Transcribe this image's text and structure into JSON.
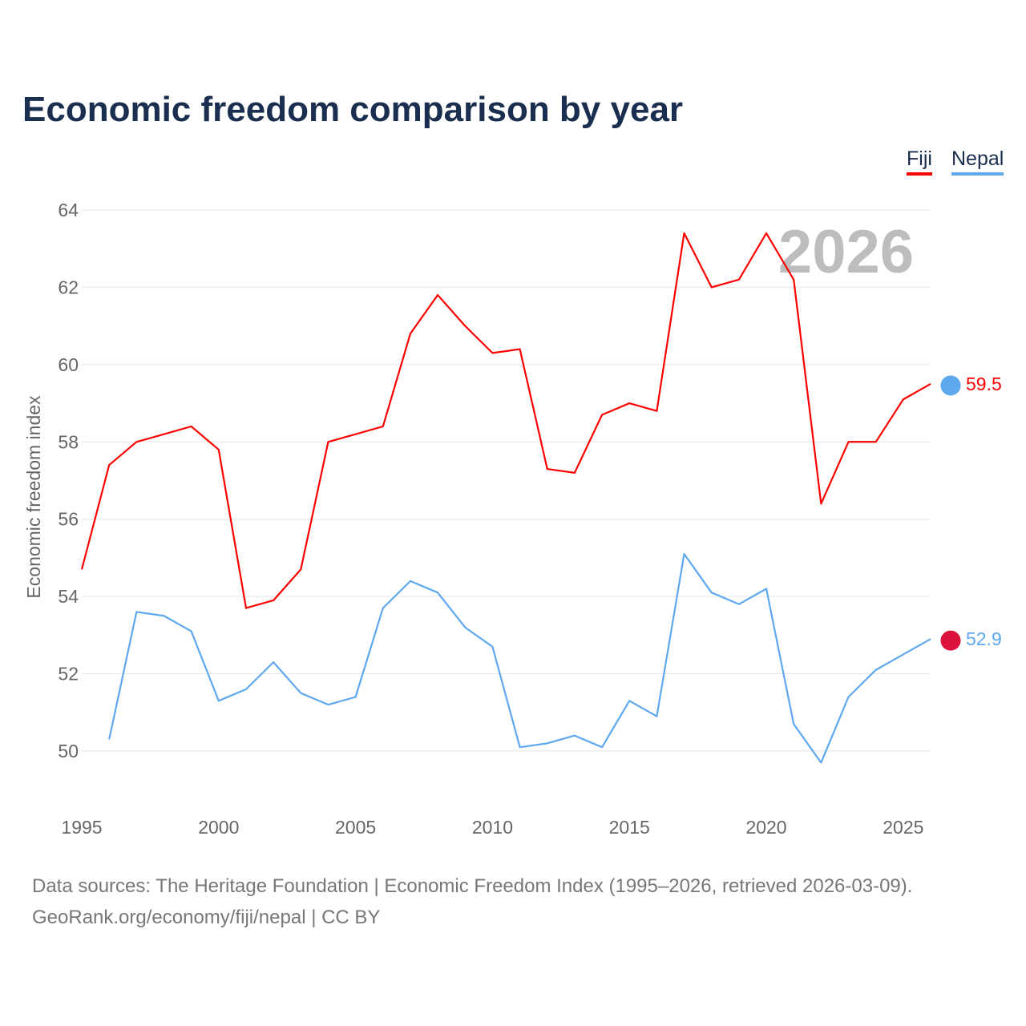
{
  "title": "Economic freedom comparison by year",
  "footer": {
    "line1": "Data sources: The Heritage Foundation | Economic Freedom Index (1995–2026, retrieved 2026-03-09).",
    "line2": "GeoRank.org/economy/fiji/nepal | CC BY"
  },
  "chart_data": {
    "type": "line",
    "title": "Economic freedom comparison by year",
    "xlabel": "",
    "ylabel": "Economic freedom index",
    "watermark_year": "2026",
    "xlim": [
      1995,
      2026
    ],
    "ylim": [
      48.5,
      64
    ],
    "xticks": [
      1995,
      2000,
      2005,
      2010,
      2015,
      2020,
      2025
    ],
    "yticks": [
      50,
      52,
      54,
      56,
      58,
      60,
      62,
      64
    ],
    "grid": true,
    "legend_position": "top-right",
    "series": [
      {
        "name": "Fiji",
        "color": "#ff0000",
        "end_label": "59.5",
        "x": [
          1995,
          1996,
          1997,
          1998,
          1999,
          2000,
          2001,
          2002,
          2003,
          2004,
          2005,
          2006,
          2007,
          2008,
          2009,
          2010,
          2011,
          2012,
          2013,
          2014,
          2015,
          2016,
          2017,
          2018,
          2019,
          2020,
          2021,
          2022,
          2023,
          2024,
          2025,
          2026
        ],
        "values": [
          54.7,
          57.4,
          58.0,
          58.2,
          58.4,
          57.8,
          53.7,
          53.9,
          54.7,
          58.0,
          58.2,
          58.4,
          60.8,
          61.8,
          61.0,
          60.3,
          60.4,
          57.3,
          57.2,
          58.7,
          59.0,
          58.8,
          63.4,
          62.0,
          62.2,
          63.4,
          62.2,
          56.4,
          58.0,
          58.0,
          59.1,
          59.5
        ]
      },
      {
        "name": "Nepal",
        "color": "#5ea8ef",
        "end_label": "52.9",
        "x": [
          1996,
          1997,
          1998,
          1999,
          2000,
          2001,
          2002,
          2003,
          2004,
          2005,
          2006,
          2007,
          2008,
          2009,
          2010,
          2011,
          2012,
          2013,
          2014,
          2015,
          2016,
          2017,
          2018,
          2019,
          2020,
          2021,
          2022,
          2023,
          2024,
          2025,
          2026
        ],
        "values": [
          50.3,
          53.6,
          53.5,
          53.1,
          51.3,
          51.6,
          52.3,
          51.5,
          51.2,
          51.4,
          53.7,
          54.4,
          54.1,
          53.2,
          52.7,
          50.1,
          50.2,
          50.4,
          50.1,
          51.3,
          50.9,
          55.1,
          54.1,
          53.8,
          54.2,
          50.7,
          49.7,
          51.4,
          52.1,
          52.5,
          52.9
        ]
      }
    ]
  }
}
